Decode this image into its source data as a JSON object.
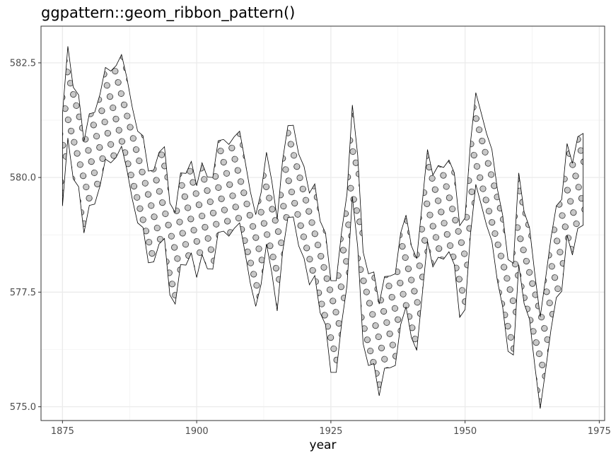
{
  "title": "ggpattern::geom_ribbon_pattern()",
  "chart_data": {
    "type": "area",
    "title": "ggpattern::geom_ribbon_pattern()",
    "xlabel": "year",
    "ylabel": "",
    "xlim": [
      1871,
      1976
    ],
    "ylim": [
      574.7,
      583.3
    ],
    "x_ticks": [
      1875,
      1900,
      1925,
      1950,
      1975
    ],
    "x_tick_labels": [
      "1875",
      "1900",
      "1925",
      "1950",
      "1975"
    ],
    "y_ticks": [
      575.0,
      577.5,
      580.0,
      582.5
    ],
    "y_tick_labels": [
      "575.0",
      "577.5",
      "580.0",
      "582.5"
    ],
    "grid": true,
    "pattern": "circle",
    "pattern_fill": "#c8c8c8",
    "ribbon_fill": "#ffffff",
    "outline_color": "#000000",
    "x": [
      1875,
      1876,
      1877,
      1878,
      1879,
      1880,
      1881,
      1882,
      1883,
      1884,
      1885,
      1886,
      1887,
      1888,
      1889,
      1890,
      1891,
      1892,
      1893,
      1894,
      1895,
      1896,
      1897,
      1898,
      1899,
      1900,
      1901,
      1902,
      1903,
      1904,
      1905,
      1906,
      1907,
      1908,
      1909,
      1910,
      1911,
      1912,
      1913,
      1914,
      1915,
      1916,
      1917,
      1918,
      1919,
      1920,
      1921,
      1922,
      1923,
      1924,
      1925,
      1926,
      1927,
      1928,
      1929,
      1930,
      1931,
      1932,
      1933,
      1934,
      1935,
      1936,
      1937,
      1938,
      1939,
      1940,
      1941,
      1942,
      1943,
      1944,
      1945,
      1946,
      1947,
      1948,
      1949,
      1950,
      1951,
      1952,
      1953,
      1954,
      1955,
      1956,
      1957,
      1958,
      1959,
      1960,
      1961,
      1962,
      1963,
      1964,
      1965,
      1966,
      1967,
      1968,
      1969,
      1970,
      1971,
      1972
    ],
    "level": [
      580.38,
      581.86,
      580.97,
      580.8,
      579.79,
      580.39,
      580.42,
      580.82,
      581.4,
      581.32,
      581.44,
      581.68,
      581.17,
      580.53,
      580.01,
      579.91,
      579.14,
      579.16,
      579.55,
      579.67,
      578.44,
      578.24,
      579.1,
      579.09,
      579.35,
      578.82,
      579.32,
      579.01,
      579,
      579.8,
      579.83,
      579.72,
      579.89,
      580.01,
      579.37,
      578.69,
      578.19,
      578.67,
      579.55,
      578.92,
      578.09,
      579.37,
      580.13,
      580.14,
      579.51,
      579.24,
      578.66,
      578.86,
      578.05,
      577.79,
      576.75,
      576.75,
      577.82,
      578.64,
      580.58,
      579.48,
      577.38,
      576.9,
      576.94,
      576.24,
      576.84,
      576.85,
      576.9,
      577.79,
      578.18,
      577.51,
      577.23,
      578.42,
      579.61,
      579.05,
      579.26,
      579.22,
      579.38,
      579.1,
      577.95,
      578.12,
      579.75,
      580.85,
      580.41,
      579.96,
      579.61,
      578.76,
      578.18,
      577.21,
      577.13,
      579.1,
      578.25,
      577.91,
      576.89,
      575.96,
      576.8,
      577.68,
      578.38,
      578.52,
      579.74,
      579.31,
      579.89,
      579.96
    ]
  }
}
